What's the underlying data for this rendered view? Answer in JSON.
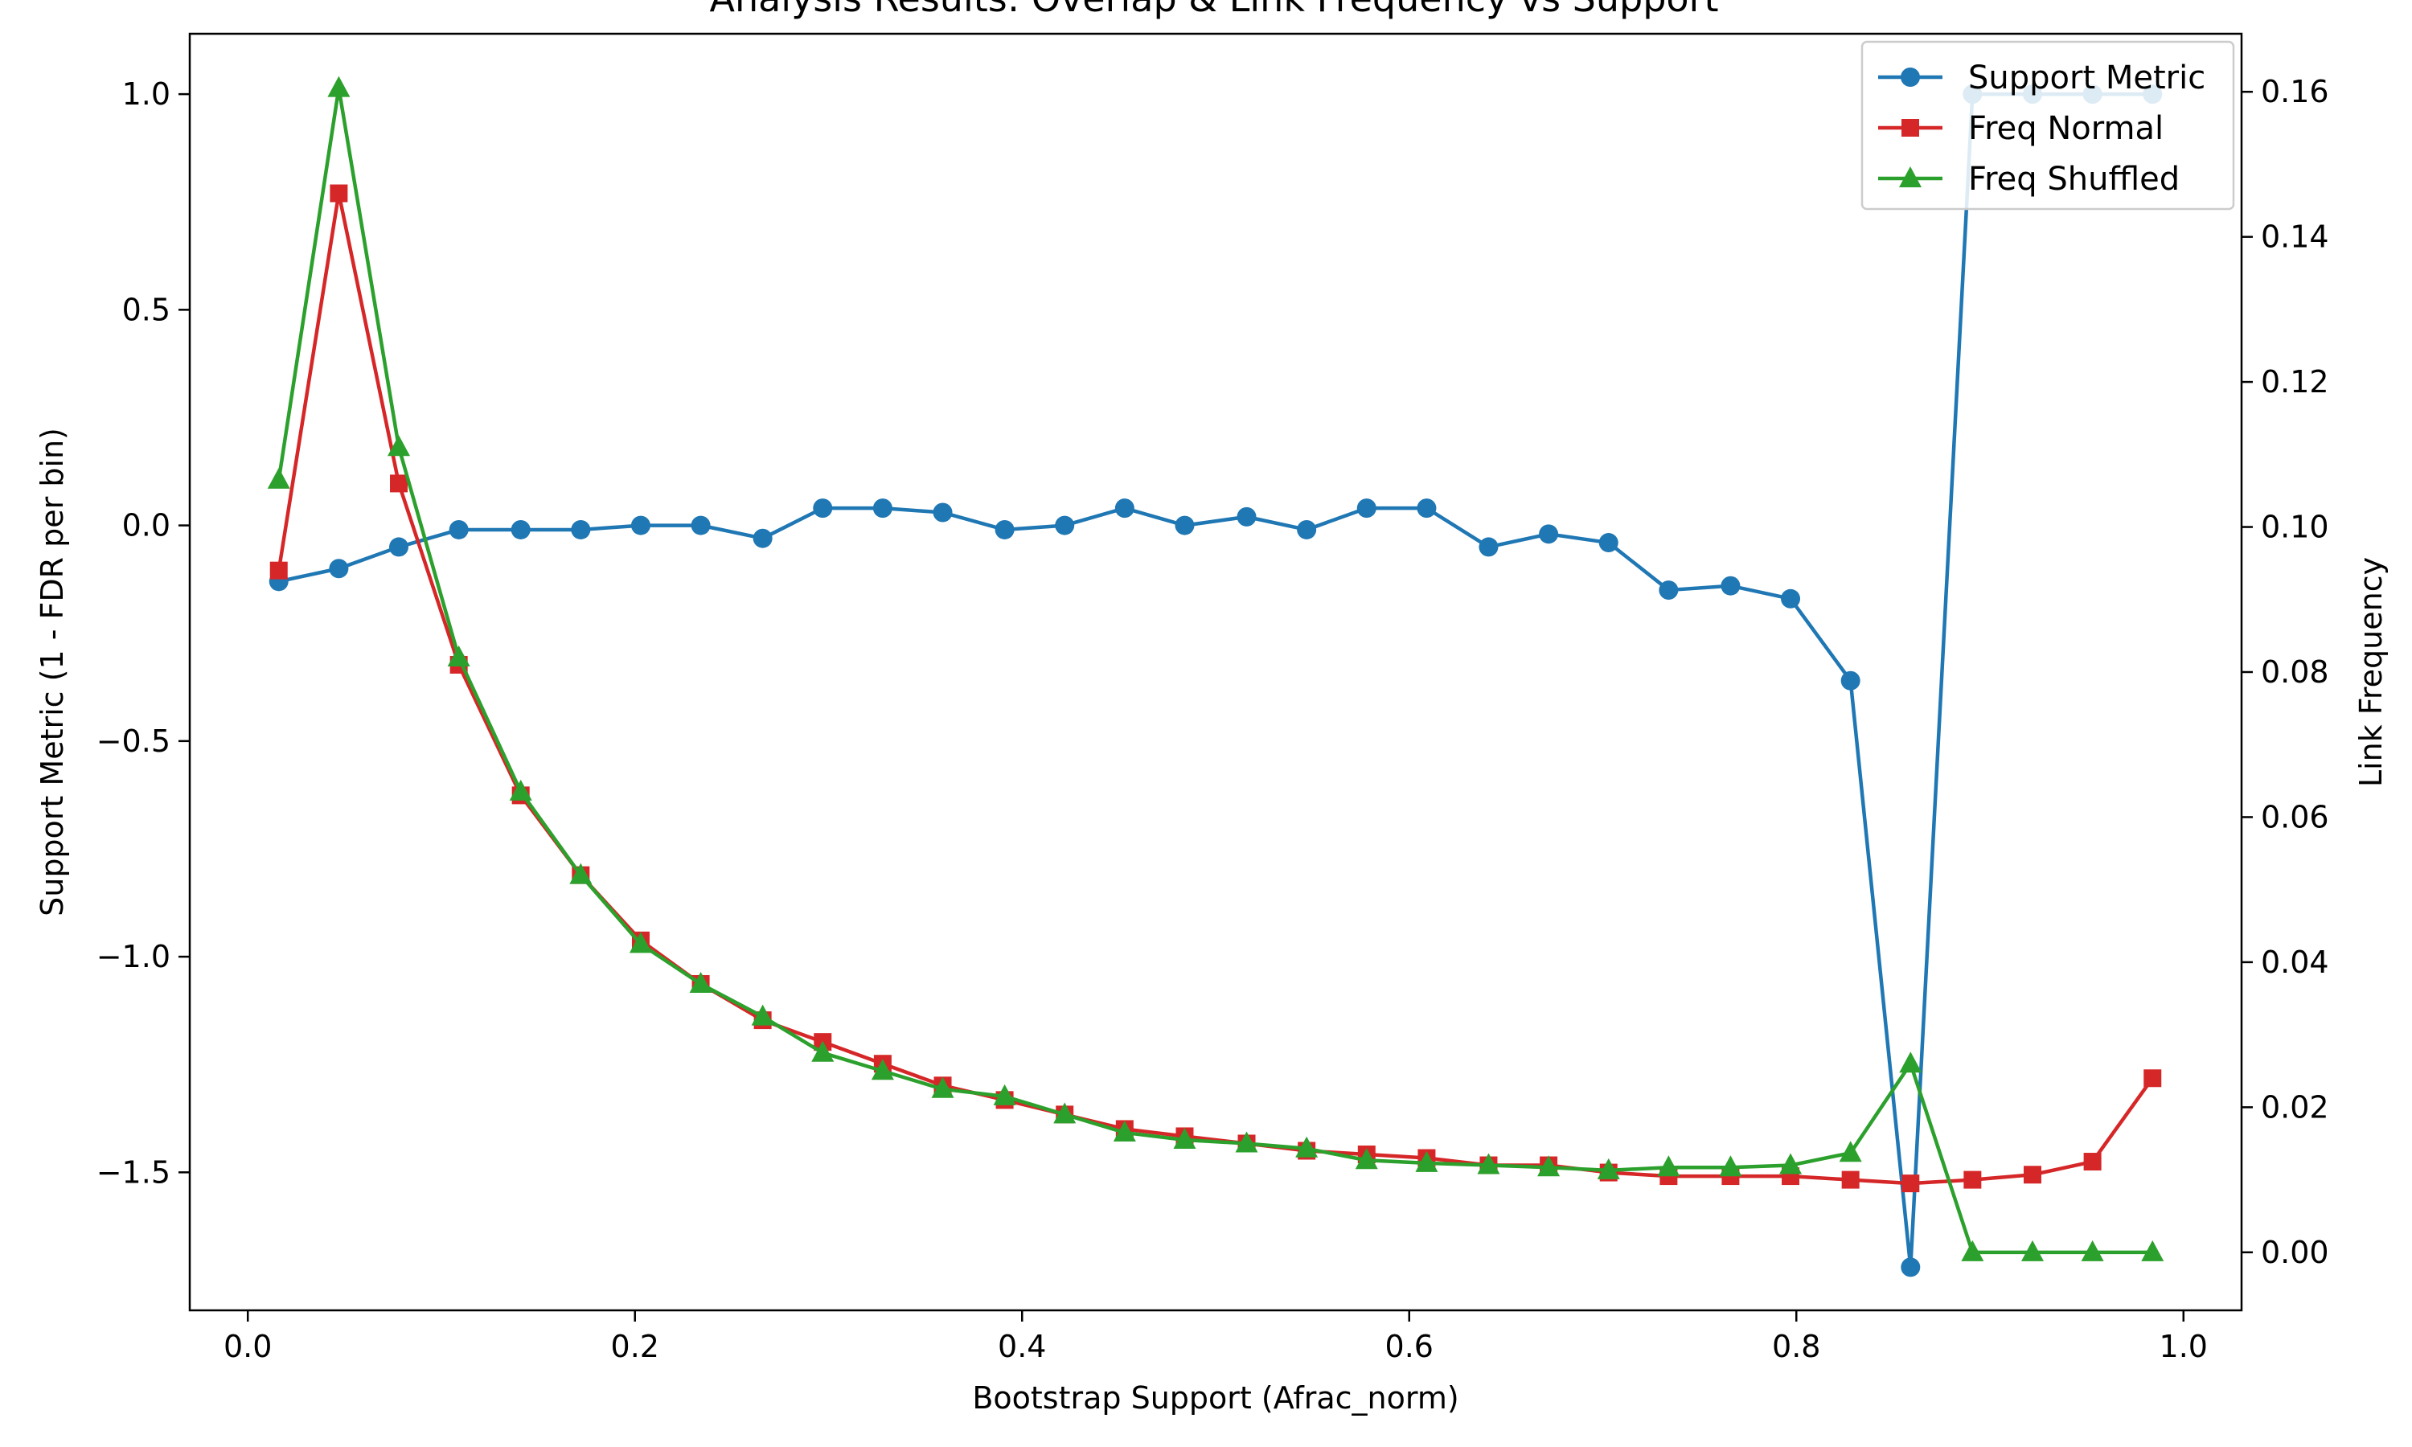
{
  "chart_data": {
    "type": "line",
    "title": "Analysis Results: Overlap & Link Frequency vs Support",
    "xlabel": "Bootstrap Support (Afrac_norm)",
    "ylabel": "Support Metric (1 - FDR per bin)",
    "y2label": "Link Frequency",
    "xlim": [
      -0.03,
      1.03
    ],
    "ylim": [
      -1.82,
      1.14
    ],
    "y2lim": [
      -0.008,
      0.168
    ],
    "x_ticks": [
      0.0,
      0.2,
      0.4,
      0.6,
      0.8,
      1.0
    ],
    "x_tick_labels": [
      "0.0",
      "0.2",
      "0.4",
      "0.6",
      "0.8",
      "1.0"
    ],
    "y_ticks": [
      1.0,
      0.5,
      0.0,
      -0.5,
      -1.0,
      -1.5
    ],
    "y_tick_labels": [
      "1.0",
      "0.5",
      "0.0",
      "−0.5",
      "−1.0",
      "−1.5"
    ],
    "y2_ticks": [
      0.0,
      0.02,
      0.04,
      0.06,
      0.08,
      0.1,
      0.12,
      0.14,
      0.16
    ],
    "y2_tick_labels": [
      "0.00",
      "0.02",
      "0.04",
      "0.06",
      "0.08",
      "0.10",
      "0.12",
      "0.14",
      "0.16"
    ],
    "grid": false,
    "legend_position": "top-right",
    "x": [
      0.016,
      0.047,
      0.078,
      0.109,
      0.141,
      0.172,
      0.203,
      0.234,
      0.266,
      0.297,
      0.328,
      0.359,
      0.391,
      0.422,
      0.453,
      0.484,
      0.516,
      0.547,
      0.578,
      0.609,
      0.641,
      0.672,
      0.703,
      0.734,
      0.766,
      0.797,
      0.828,
      0.859,
      0.891,
      0.922,
      0.953,
      0.984
    ],
    "series": [
      {
        "name": "Support Metric",
        "axis": "left",
        "color": "#1f77b4",
        "marker": "circle",
        "values": [
          -0.13,
          -0.1,
          -0.05,
          -0.01,
          -0.01,
          -0.01,
          0.0,
          0.0,
          -0.03,
          0.04,
          0.04,
          0.03,
          -0.01,
          0.0,
          0.04,
          0.0,
          0.02,
          -0.01,
          0.04,
          0.04,
          -0.05,
          -0.02,
          -0.04,
          -0.15,
          -0.14,
          -0.17,
          -0.36,
          -1.72,
          1.0,
          1.0,
          1.0,
          1.0
        ]
      },
      {
        "name": "Freq Normal",
        "axis": "right",
        "color": "#d62728",
        "marker": "square",
        "values": [
          0.094,
          0.146,
          0.106,
          0.081,
          0.063,
          0.052,
          0.043,
          0.037,
          0.032,
          0.029,
          0.026,
          0.023,
          0.021,
          0.019,
          0.017,
          0.016,
          0.015,
          0.014,
          0.0135,
          0.013,
          0.012,
          0.012,
          0.011,
          0.0105,
          0.0105,
          0.0105,
          0.01,
          0.0095,
          0.01,
          0.0107,
          0.0125,
          0.024
        ]
      },
      {
        "name": "Freq Shuffled",
        "axis": "right",
        "color": "#2ca02c",
        "marker": "triangle",
        "values": [
          0.1065,
          0.1605,
          0.111,
          0.082,
          0.0635,
          0.052,
          0.0425,
          0.037,
          0.0325,
          0.0275,
          0.025,
          0.0225,
          0.0215,
          0.019,
          0.0165,
          0.0155,
          0.015,
          0.0143,
          0.0127,
          0.0123,
          0.012,
          0.0117,
          0.0113,
          0.0117,
          0.0117,
          0.012,
          0.0137,
          0.026,
          0.0,
          0.0,
          0.0,
          0.0
        ]
      }
    ]
  }
}
